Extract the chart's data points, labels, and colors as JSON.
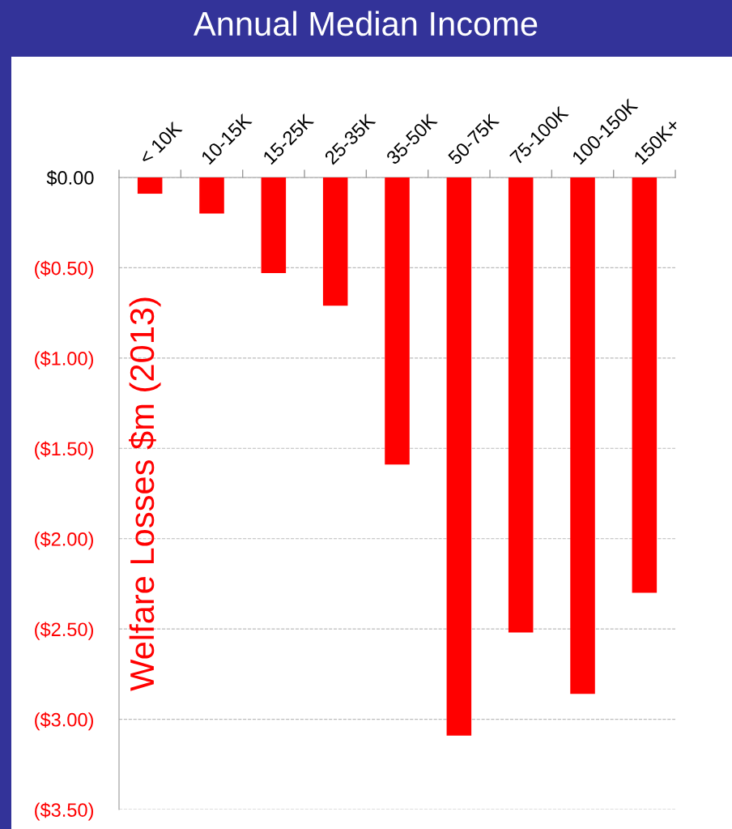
{
  "chart_data": {
    "type": "bar",
    "title": "Annual Median Income",
    "ylabel": "Welfare Losses $m (2013)",
    "categories": [
      "< 10K",
      "10-15K",
      "15-25K",
      "25-35K",
      "35-50K",
      "50-75K",
      "75-100K",
      "100-150K",
      "150K+"
    ],
    "values": [
      -0.09,
      -0.2,
      -0.53,
      -0.71,
      -1.59,
      -3.09,
      -2.52,
      -2.86,
      -2.3
    ],
    "color": "#ff0000",
    "ylim": [
      -3.5,
      0
    ],
    "yticks": [
      {
        "value": 0,
        "label": "$0.00"
      },
      {
        "value": -0.5,
        "label": "($0.50)"
      },
      {
        "value": -1,
        "label": "($1.00)"
      },
      {
        "value": -1.5,
        "label": "($1.50)"
      },
      {
        "value": -2,
        "label": "($2.00)"
      },
      {
        "value": -2.5,
        "label": "($2.50)"
      },
      {
        "value": -3,
        "label": "($3.00)"
      },
      {
        "value": -3.5,
        "label": "($3.50)"
      }
    ],
    "grid": "y"
  }
}
